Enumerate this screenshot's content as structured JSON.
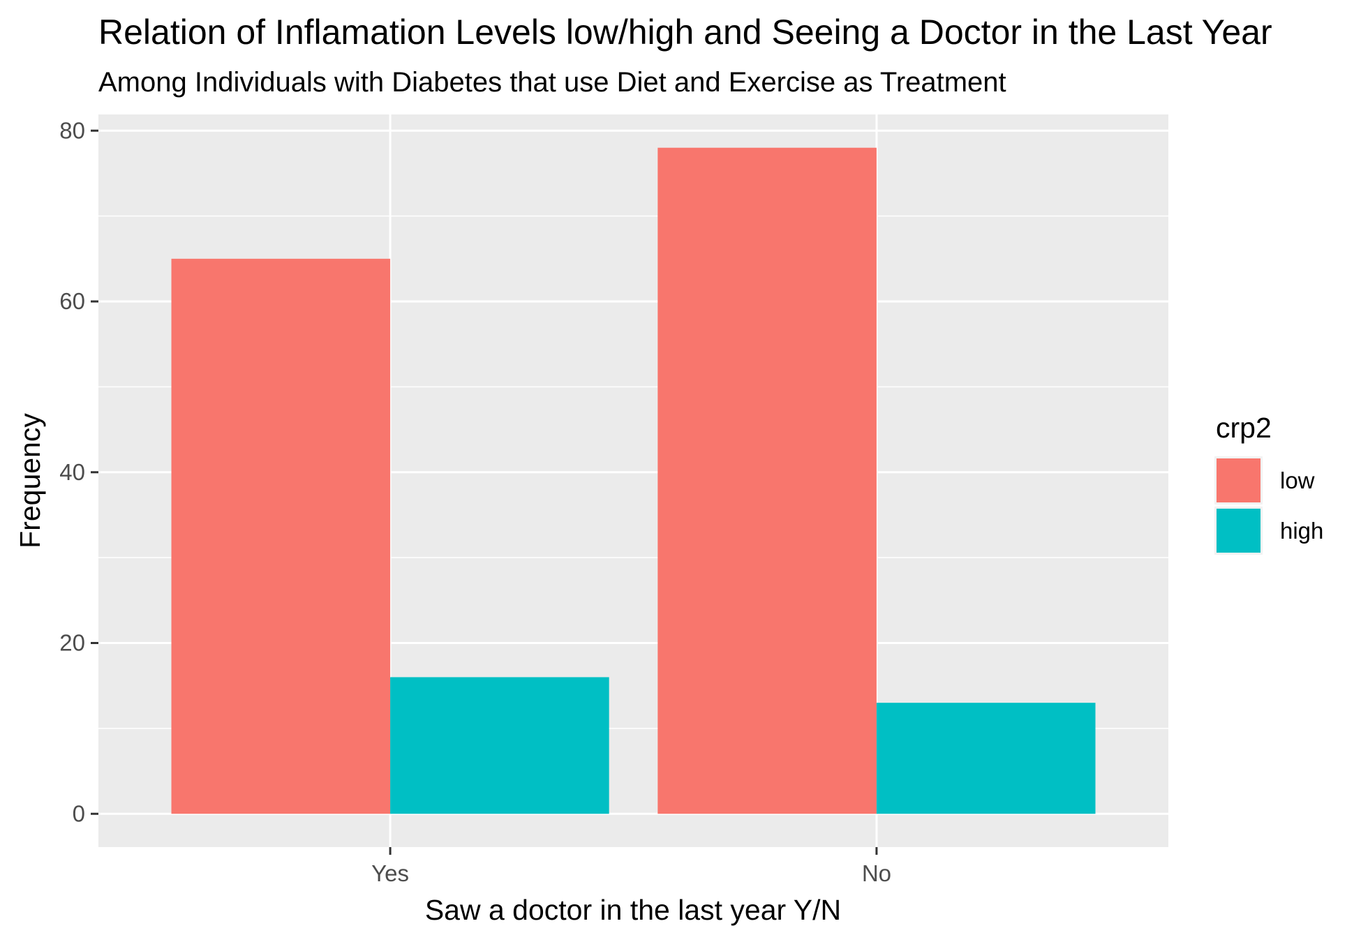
{
  "chart_data": {
    "type": "bar",
    "title": "Relation of Inflamation Levels low/high and Seeing a Doctor in the Last Year",
    "subtitle": "Among Individuals with Diabetes that use Diet and Exercise as Treatment",
    "xlabel": "Saw a doctor in the last year Y/N",
    "ylabel": "Frequency",
    "categories": [
      "Yes",
      "No"
    ],
    "series": [
      {
        "name": "low",
        "color": "#F8766D",
        "values": [
          65,
          78
        ]
      },
      {
        "name": "high",
        "color": "#00BFC4",
        "values": [
          16,
          13
        ]
      }
    ],
    "ylim": [
      -3.9,
      81.9
    ],
    "yticks": [
      0,
      20,
      40,
      60,
      80
    ],
    "grid": true,
    "legend": {
      "title": "crp2",
      "position": "right"
    },
    "panel_background": "#EBEBEB"
  }
}
